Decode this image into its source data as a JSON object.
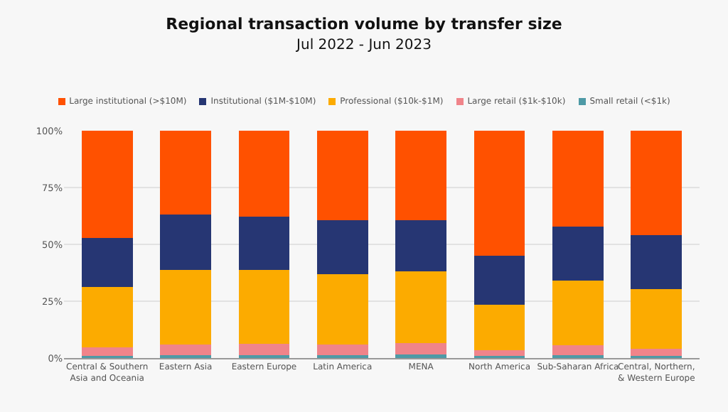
{
  "chart_data": {
    "type": "bar",
    "title": "Regional transaction volume by transfer size",
    "subtitle": "Jul 2022 - Jun 2023",
    "stacked": true,
    "grid": "y",
    "legend": "top",
    "categories": [
      "Central & Southern Asia and Oceania",
      "Eastern Asia",
      "Eastern Europe",
      "Latin America",
      "MENA",
      "North America",
      "Sub-Saharan Africa",
      "Central, Northern, & Western Europe"
    ],
    "ylim": [
      0,
      100
    ],
    "yticks": [
      {
        "value": 0,
        "label": "0%"
      },
      {
        "value": 25,
        "label": "25%"
      },
      {
        "value": 50,
        "label": "50%"
      },
      {
        "value": 75,
        "label": "75%"
      },
      {
        "value": 100,
        "label": "100%"
      }
    ],
    "series": [
      {
        "name": "Small retail (<$1k)",
        "color": "#4e9aa6",
        "values": [
          0.8,
          1.3,
          1.3,
          1.3,
          1.7,
          0.8,
          1.3,
          0.8
        ]
      },
      {
        "name": "Large retail ($1k-$10k)",
        "color": "#f0848a",
        "values": [
          4.0,
          4.6,
          4.8,
          4.6,
          5.0,
          2.6,
          4.3,
          3.4
        ]
      },
      {
        "name": "Professional ($10k-$1M)",
        "color": "#fcab00",
        "values": [
          26.6,
          32.8,
          32.8,
          31.1,
          31.4,
          20.0,
          28.5,
          26.1
        ]
      },
      {
        "name": "Institutional ($1M-$10M)",
        "color": "#263673",
        "values": [
          21.5,
          24.5,
          23.4,
          23.7,
          22.4,
          21.6,
          23.6,
          23.9
        ]
      },
      {
        "name": "Large institutional (>$10M)",
        "color": "#ff5100",
        "values": [
          47.1,
          36.8,
          37.7,
          39.3,
          39.5,
          55.0,
          42.3,
          45.8
        ]
      }
    ]
  }
}
